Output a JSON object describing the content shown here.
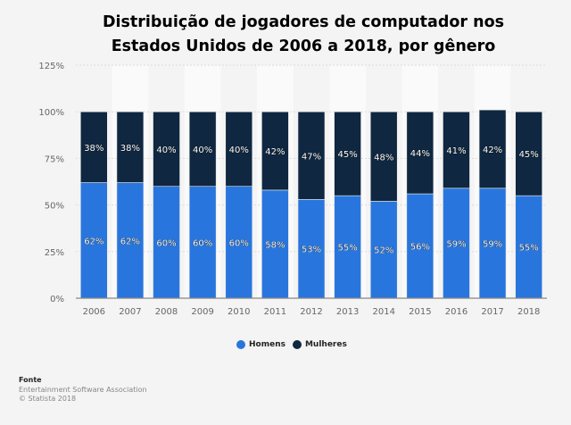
{
  "chart_data": {
    "type": "bar",
    "stacked": true,
    "title": "Distribuição de jogadores de computador nos Estados Unidos de 2006 a 2018, por gênero",
    "xlabel": "",
    "ylabel": "",
    "categories": [
      "2006",
      "2007",
      "2008",
      "2009",
      "2010",
      "2011",
      "2012",
      "2013",
      "2014",
      "2015",
      "2016",
      "2017",
      "2018"
    ],
    "series": [
      {
        "name": "Homens",
        "color": "#2876dd",
        "values": [
          62,
          62,
          60,
          60,
          60,
          58,
          53,
          55,
          52,
          56,
          59,
          59,
          55
        ]
      },
      {
        "name": "Mulheres",
        "color": "#0f2740",
        "values": [
          38,
          38,
          40,
          40,
          40,
          42,
          47,
          45,
          48,
          44,
          41,
          42,
          45
        ]
      }
    ],
    "ylim": [
      0,
      125
    ],
    "yticks": [
      0,
      25,
      50,
      75,
      100,
      125
    ],
    "ytick_labels": [
      "0%",
      "25%",
      "50%",
      "75%",
      "100%",
      "125%"
    ],
    "grid": true,
    "legend": "bottom-center",
    "data_labels": true
  },
  "source": {
    "heading": "Fonte",
    "line1": "Entertainment Software Association",
    "line2": "© Statista 2018"
  }
}
